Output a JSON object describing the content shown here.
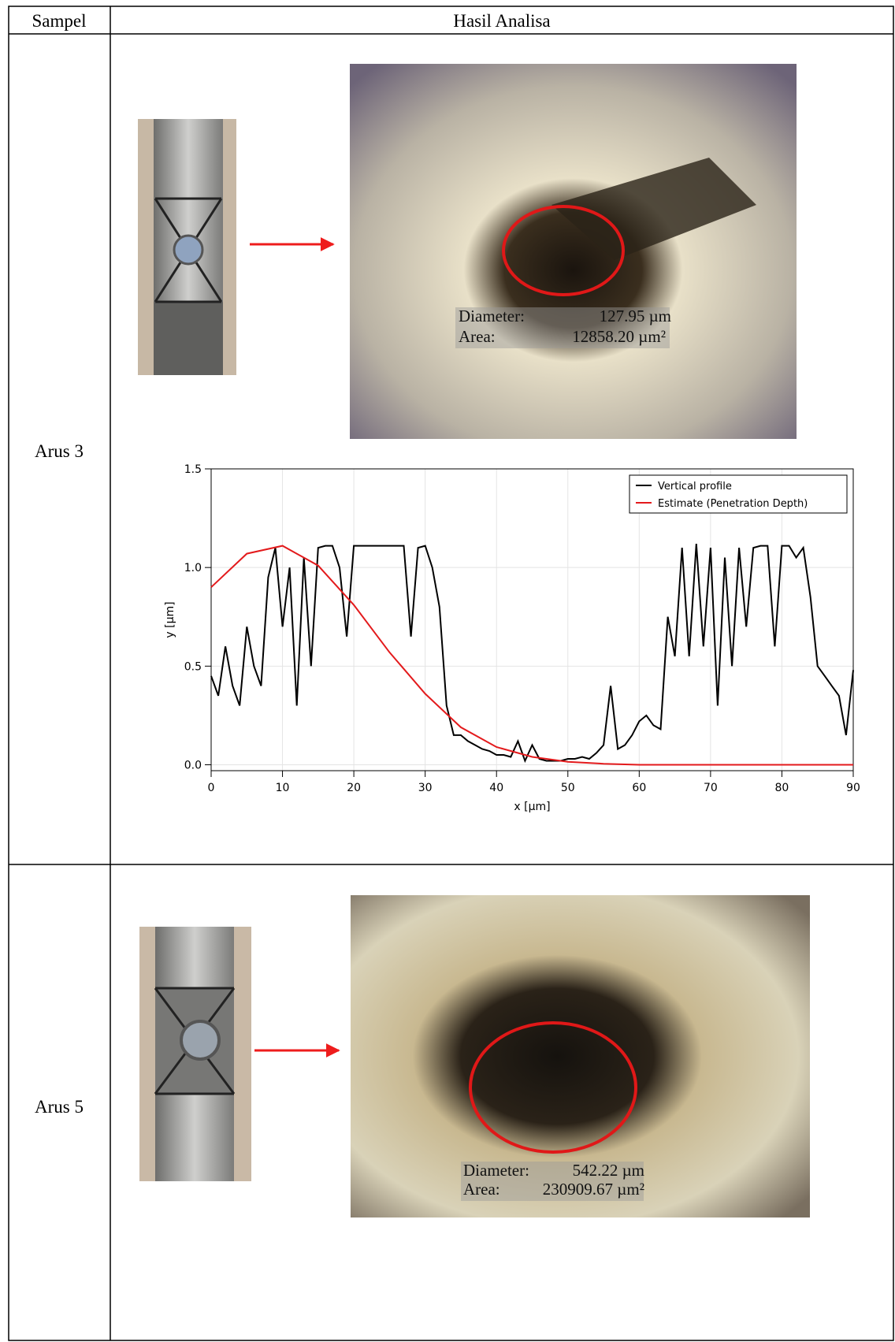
{
  "table": {
    "header": [
      "Sampel",
      "Hasil Analisa"
    ],
    "rows": [
      {
        "sample": "Arus 3",
        "measurement": {
          "diameter_label": "Diameter:",
          "diameter": "127.95 µm",
          "area_label": "Area:",
          "area": "12858.20 µm²"
        }
      },
      {
        "sample": "Arus 5",
        "measurement": {
          "diameter_label": "Diameter:",
          "diameter": "542.22 µm",
          "area_label": "Area:",
          "area": "230909.67 µm²"
        }
      }
    ]
  },
  "chart_data": {
    "type": "line",
    "x_label": "x [µm]",
    "y_label": "y [µm]",
    "xlim": [
      0,
      90
    ],
    "ylim": [
      -0.03,
      1.5
    ],
    "xticks": [
      0,
      10,
      20,
      30,
      40,
      50,
      60,
      70,
      80,
      90
    ],
    "yticks": [
      {
        "value": 0,
        "label": "0.0"
      },
      0.5,
      {
        "value": 1,
        "label": "1.0"
      },
      1.5
    ],
    "grid": true,
    "legend": "top-right",
    "series": [
      {
        "name": "Vertical profile",
        "color": "#000000",
        "x": [
          0,
          1,
          2,
          3,
          4,
          5,
          6,
          7,
          8,
          9,
          10,
          11,
          12,
          13,
          14,
          15,
          16,
          17,
          18,
          19,
          20,
          21,
          22,
          23,
          24,
          25,
          26,
          27,
          28,
          29,
          30,
          31,
          32,
          33,
          34,
          35,
          36,
          37,
          38,
          39,
          40,
          41,
          42,
          43,
          44,
          45,
          46,
          47,
          48,
          49,
          50,
          51,
          52,
          53,
          54,
          55,
          56,
          57,
          58,
          59,
          60,
          61,
          62,
          63,
          64,
          65,
          66,
          67,
          68,
          69,
          70,
          71,
          72,
          73,
          74,
          75,
          76,
          77,
          78,
          79,
          80,
          81,
          82,
          83,
          84,
          85,
          86,
          87,
          88,
          89,
          90
        ],
        "values": [
          0.45,
          0.35,
          0.6,
          0.4,
          0.3,
          0.7,
          0.5,
          0.4,
          0.95,
          1.1,
          0.7,
          1.0,
          0.3,
          1.05,
          0.5,
          1.1,
          1.11,
          1.11,
          1.0,
          0.65,
          1.11,
          1.11,
          1.11,
          1.11,
          1.11,
          1.11,
          1.11,
          1.11,
          0.65,
          1.1,
          1.11,
          1.0,
          0.8,
          0.3,
          0.15,
          0.15,
          0.12,
          0.1,
          0.08,
          0.07,
          0.05,
          0.05,
          0.04,
          0.12,
          0.02,
          0.1,
          0.03,
          0.02,
          0.02,
          0.02,
          0.03,
          0.03,
          0.04,
          0.03,
          0.06,
          0.1,
          0.4,
          0.08,
          0.1,
          0.15,
          0.22,
          0.25,
          0.2,
          0.18,
          0.75,
          0.55,
          1.1,
          0.55,
          1.12,
          0.6,
          1.1,
          0.3,
          1.05,
          0.5,
          1.1,
          0.7,
          1.1,
          1.11,
          1.11,
          0.6,
          1.11,
          1.11,
          1.05,
          1.1,
          0.85,
          0.5,
          0.45,
          0.4,
          0.35,
          0.15,
          0.48
        ]
      },
      {
        "name": "Estimate (Penetration Depth)",
        "color": "#e31a1c",
        "x": [
          0,
          5,
          10,
          15,
          20,
          25,
          30,
          35,
          40,
          45,
          50,
          55,
          60,
          65,
          70,
          75,
          80,
          85,
          90
        ],
        "values": [
          0.9,
          1.07,
          1.11,
          1.01,
          0.81,
          0.57,
          0.36,
          0.19,
          0.09,
          0.04,
          0.015,
          0.005,
          0,
          0,
          0,
          0,
          0,
          0,
          0
        ]
      }
    ]
  }
}
